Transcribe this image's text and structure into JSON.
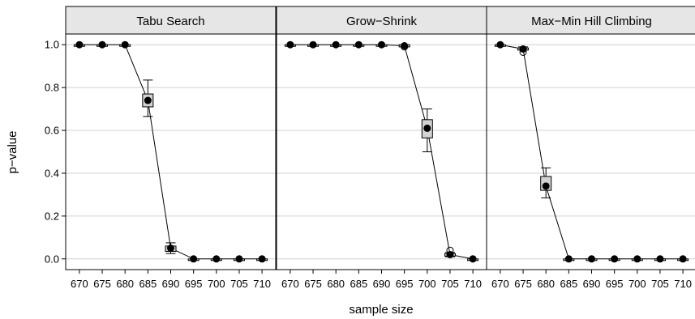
{
  "chart_data": {
    "type": "line",
    "xlabel": "sample size",
    "ylabel": "p−value",
    "ylim": [
      -0.05,
      1.05
    ],
    "yticks": [
      0.0,
      0.2,
      0.4,
      0.6,
      0.8,
      1.0
    ],
    "ytick_labels": [
      "0.0",
      "0.2",
      "0.4",
      "0.6",
      "0.8",
      "1.0"
    ],
    "xticks": [
      670,
      675,
      680,
      685,
      690,
      695,
      700,
      705,
      710
    ],
    "xlim": [
      667,
      713
    ],
    "grid": true,
    "panels": [
      {
        "title": "Tabu Search",
        "x": [
          670,
          675,
          680,
          685,
          690,
          695,
          700,
          705,
          710
        ],
        "mean": [
          1.0,
          1.0,
          1.0,
          0.74,
          0.05,
          0.0,
          0.0,
          0.0,
          0.0
        ],
        "box_low": [
          1.0,
          1.0,
          1.0,
          0.71,
          0.035,
          0.0,
          0.0,
          0.0,
          0.0
        ],
        "box_high": [
          1.0,
          1.0,
          1.0,
          0.77,
          0.06,
          0.0,
          0.0,
          0.0,
          0.0
        ],
        "whisker_low": [
          1.0,
          1.0,
          1.0,
          0.665,
          0.025,
          0.0,
          0.0,
          0.0,
          0.0
        ],
        "whisker_high": [
          1.0,
          1.0,
          1.0,
          0.835,
          0.075,
          0.0,
          0.0,
          0.0,
          0.0
        ],
        "outliers": []
      },
      {
        "title": "Grow−Shrink",
        "x": [
          670,
          675,
          680,
          685,
          690,
          695,
          700,
          705,
          710
        ],
        "mean": [
          1.0,
          1.0,
          1.0,
          1.0,
          1.0,
          0.995,
          0.61,
          0.02,
          0.0
        ],
        "box_low": [
          1.0,
          1.0,
          1.0,
          1.0,
          1.0,
          0.99,
          0.565,
          0.013,
          0.0
        ],
        "box_high": [
          1.0,
          1.0,
          1.0,
          1.0,
          1.0,
          1.0,
          0.65,
          0.025,
          0.0
        ],
        "whisker_low": [
          1.0,
          1.0,
          1.0,
          1.0,
          1.0,
          0.99,
          0.5,
          0.01,
          0.0
        ],
        "whisker_high": [
          1.0,
          1.0,
          1.0,
          1.0,
          1.0,
          1.0,
          0.7,
          0.03,
          0.0
        ],
        "outliers": [
          [
            695,
            0.99
          ],
          [
            705,
            0.04
          ]
        ]
      },
      {
        "title": "Max−Min Hill Climbing",
        "x": [
          670,
          675,
          680,
          685,
          690,
          695,
          700,
          705,
          710
        ],
        "mean": [
          1.0,
          0.98,
          0.34,
          0.0,
          0.0,
          0.0,
          0.0,
          0.0,
          0.0
        ],
        "box_low": [
          1.0,
          0.975,
          0.32,
          0.0,
          0.0,
          0.0,
          0.0,
          0.0,
          0.0
        ],
        "box_high": [
          1.0,
          0.985,
          0.385,
          0.0,
          0.0,
          0.0,
          0.0,
          0.0,
          0.0
        ],
        "whisker_low": [
          1.0,
          0.975,
          0.285,
          0.0,
          0.0,
          0.0,
          0.0,
          0.0,
          0.0
        ],
        "whisker_high": [
          1.0,
          0.99,
          0.425,
          0.0,
          0.0,
          0.0,
          0.0,
          0.0,
          0.0
        ],
        "outliers": [
          [
            675,
            0.965
          ]
        ]
      }
    ]
  }
}
